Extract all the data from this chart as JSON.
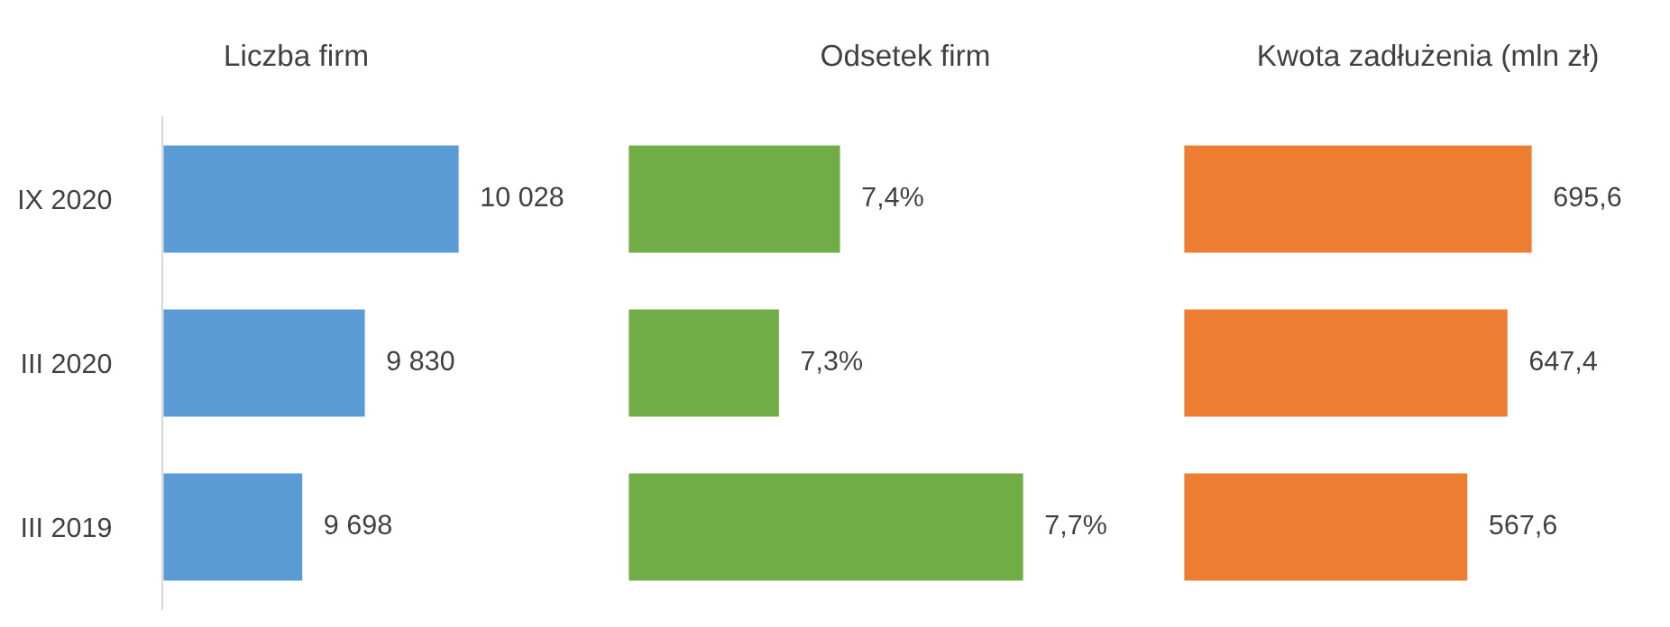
{
  "chart_data": [
    {
      "type": "bar",
      "orientation": "horizontal",
      "title": "Liczba firm",
      "categories": [
        "IX 2020",
        "III 2020",
        "III 2019"
      ],
      "values": [
        10028,
        9830,
        9698
      ],
      "value_labels": [
        "10 028",
        "9 830",
        "9 698"
      ],
      "color": "#5b9bd5",
      "xlim": [
        9400,
        10028
      ],
      "tick_labels": "y",
      "grid": false,
      "legend": false
    },
    {
      "type": "bar",
      "orientation": "horizontal",
      "title": "Odsetek firm",
      "categories": [
        null,
        null,
        null
      ],
      "values": [
        7.4,
        7.3,
        7.7
      ],
      "value_labels": [
        "7,4%",
        "7,3%",
        "7,7%"
      ],
      "color": "#70ad47",
      "xlim": [
        7.05,
        7.7
      ],
      "tick_labels": false,
      "grid": false,
      "legend": false
    },
    {
      "type": "bar",
      "orientation": "horizontal",
      "title": "Kwota zadłużenia (mln zł)",
      "categories": [
        null,
        null,
        null
      ],
      "values": [
        695.6,
        647.4,
        567.6
      ],
      "value_labels": [
        "695,6",
        "647,4",
        "567,6"
      ],
      "color": "#ed7d31",
      "xlim": [
        0,
        695.6
      ],
      "tick_labels": false,
      "grid": false,
      "legend": false
    }
  ]
}
